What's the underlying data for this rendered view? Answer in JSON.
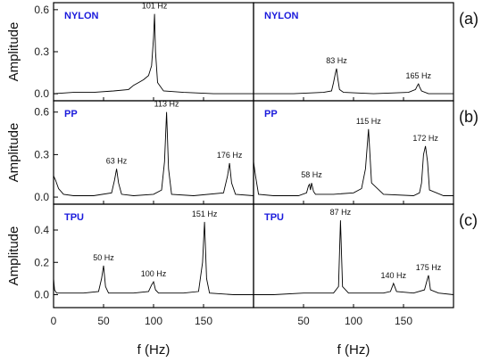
{
  "chart_data": {
    "type": "line",
    "xlabel": "f (Hz)",
    "ylabel": "Amplitude",
    "xlim": [
      0,
      200
    ],
    "xticks": [
      "0",
      "50",
      "100",
      "150"
    ],
    "rows": [
      {
        "panel": "(a)",
        "ylim": [
          -0.05,
          0.65
        ],
        "yticks": [
          "0.0",
          "0.3",
          "0.6"
        ],
        "left": {
          "material": "NYLON",
          "series": [
            {
              "x": [
                0,
                20,
                40,
                60,
                75,
                80,
                85,
                90,
                95,
                98,
                100,
                101,
                102,
                104,
                110,
                130,
                160,
                200
              ],
              "values": [
                0.0,
                0.01,
                0.01,
                0.02,
                0.03,
                0.06,
                0.08,
                0.1,
                0.13,
                0.2,
                0.4,
                0.57,
                0.3,
                0.08,
                0.02,
                0.01,
                0.0,
                0.0
              ]
            }
          ],
          "peaks": [
            {
              "label": "101 Hz",
              "x": 101,
              "y": 0.57
            }
          ]
        },
        "right": {
          "material": "NYLON",
          "series": [
            {
              "x": [
                0,
                40,
                70,
                78,
                80,
                82,
                83,
                84,
                86,
                90,
                120,
                155,
                162,
                164,
                165,
                166,
                168,
                175,
                200
              ],
              "values": [
                0.0,
                0.0,
                0.01,
                0.02,
                0.08,
                0.15,
                0.18,
                0.12,
                0.03,
                0.01,
                0.0,
                0.01,
                0.03,
                0.06,
                0.07,
                0.05,
                0.02,
                0.0,
                0.0
              ]
            }
          ],
          "peaks": [
            {
              "label": "83 Hz",
              "x": 83,
              "y": 0.18
            },
            {
              "label": "165 Hz",
              "x": 165,
              "y": 0.07
            }
          ]
        }
      },
      {
        "panel": "(b)",
        "ylim": [
          -0.05,
          0.68
        ],
        "yticks": [
          "0.0",
          "0.3",
          "0.6"
        ],
        "left": {
          "material": "PP",
          "series": [
            {
              "x": [
                0,
                2,
                5,
                10,
                20,
                40,
                58,
                61,
                63,
                65,
                68,
                80,
                100,
                108,
                111,
                113,
                115,
                118,
                140,
                170,
                174,
                176,
                178,
                182,
                200
              ],
              "values": [
                0.15,
                0.12,
                0.06,
                0.02,
                0.01,
                0.01,
                0.03,
                0.12,
                0.2,
                0.1,
                0.02,
                0.01,
                0.02,
                0.05,
                0.25,
                0.6,
                0.2,
                0.02,
                0.01,
                0.03,
                0.15,
                0.24,
                0.1,
                0.02,
                0.01
              ]
            }
          ],
          "peaks": [
            {
              "label": "63 Hz",
              "x": 63,
              "y": 0.2
            },
            {
              "label": "113 Hz",
              "x": 113,
              "y": 0.6
            },
            {
              "label": "176 Hz",
              "x": 176,
              "y": 0.24
            }
          ]
        },
        "right": {
          "material": "PP",
          "series": [
            {
              "x": [
                0,
                2,
                5,
                20,
                45,
                53,
                55,
                56,
                57,
                58,
                60,
                62,
                80,
                100,
                108,
                112,
                115,
                118,
                130,
                160,
                166,
                168,
                170,
                172,
                174,
                176,
                190,
                200
              ],
              "values": [
                0.25,
                0.15,
                0.02,
                0.01,
                0.01,
                0.03,
                0.08,
                0.09,
                0.05,
                0.1,
                0.04,
                0.02,
                0.02,
                0.03,
                0.06,
                0.2,
                0.48,
                0.1,
                0.02,
                0.01,
                0.03,
                0.1,
                0.3,
                0.36,
                0.25,
                0.05,
                0.01,
                0.01
              ]
            }
          ],
          "peaks": [
            {
              "label": "58 Hz",
              "x": 58,
              "y": 0.1
            },
            {
              "label": "115 Hz",
              "x": 115,
              "y": 0.48
            },
            {
              "label": "172 Hz",
              "x": 172,
              "y": 0.36
            }
          ]
        }
      },
      {
        "panel": "(c)",
        "ylim": [
          -0.08,
          0.56
        ],
        "yticks": [
          "0.0",
          "0.2",
          "0.4"
        ],
        "left": {
          "material": "TPU",
          "series": [
            {
              "x": [
                0,
                1,
                3,
                10,
                30,
                45,
                48,
                50,
                52,
                55,
                80,
                95,
                98,
                100,
                102,
                105,
                130,
                145,
                149,
                151,
                153,
                156,
                180,
                200
              ],
              "values": [
                0.1,
                0.03,
                0.01,
                0.01,
                0.01,
                0.02,
                0.1,
                0.18,
                0.05,
                0.01,
                0.01,
                0.02,
                0.06,
                0.08,
                0.03,
                0.01,
                0.01,
                0.02,
                0.2,
                0.45,
                0.1,
                0.01,
                0.0,
                0.0
              ]
            }
          ],
          "peaks": [
            {
              "label": "50 Hz",
              "x": 50,
              "y": 0.18
            },
            {
              "label": "100 Hz",
              "x": 100,
              "y": 0.08
            },
            {
              "label": "151 Hz",
              "x": 151,
              "y": 0.45
            }
          ]
        },
        "right": {
          "material": "TPU",
          "series": [
            {
              "x": [
                0,
                20,
                50,
                80,
                85,
                87,
                89,
                95,
                130,
                137,
                140,
                143,
                160,
                171,
                174,
                175,
                177,
                185,
                200
              ],
              "values": [
                0.0,
                0.0,
                0.01,
                0.01,
                0.05,
                0.46,
                0.05,
                0.01,
                0.01,
                0.02,
                0.07,
                0.02,
                0.01,
                0.03,
                0.1,
                0.12,
                0.03,
                0.01,
                0.0
              ]
            }
          ],
          "peaks": [
            {
              "label": "87 Hz",
              "x": 87,
              "y": 0.46
            },
            {
              "label": "140 Hz",
              "x": 140,
              "y": 0.07
            },
            {
              "label": "175 Hz",
              "x": 175,
              "y": 0.12
            }
          ]
        }
      }
    ]
  }
}
